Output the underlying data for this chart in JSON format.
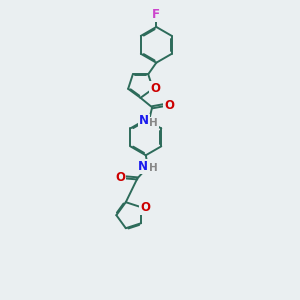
{
  "bg_color": "#eaeff1",
  "bond_color": "#2d6b5a",
  "atom_colors": {
    "F": "#cc44cc",
    "O": "#cc0000",
    "N": "#1a1aee",
    "H": "#888888"
  },
  "lw": 1.4,
  "lw2": 1.0,
  "fs": 8.5,
  "fs_small": 7.5
}
